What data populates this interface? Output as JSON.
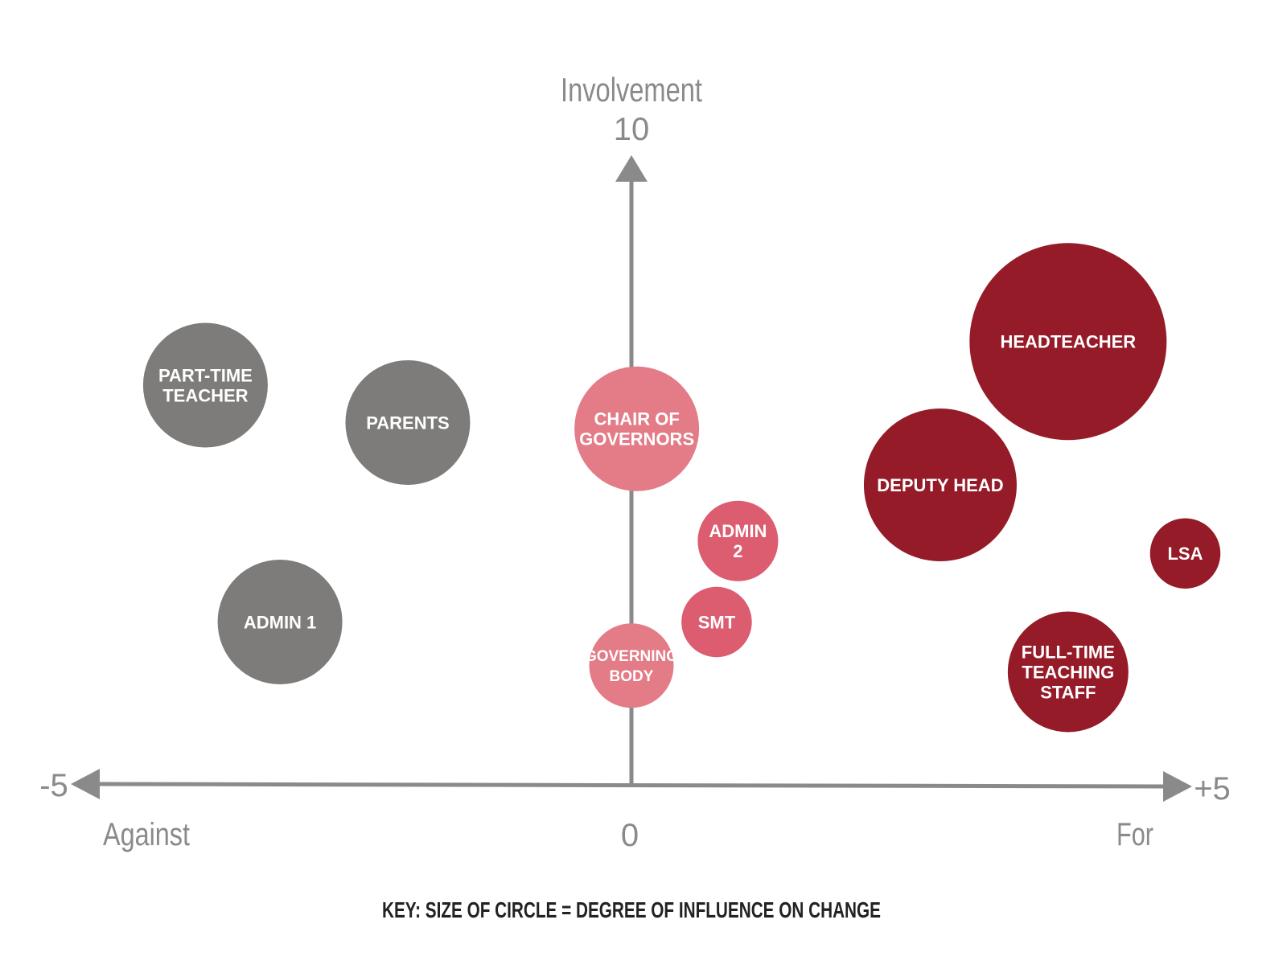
{
  "chart_data": {
    "type": "scatter",
    "y_axis_label": "Involvement",
    "y_axis_max_label": "10",
    "x_axis_min_label": "-5",
    "x_axis_max_label": "+5",
    "x_axis_zero_label": "0",
    "x_axis_left_label": "Against",
    "x_axis_right_label": "For",
    "xlim": [
      -5,
      5
    ],
    "ylim": [
      0,
      10
    ],
    "key": "KEY: SIZE OF CIRCLE = DEGREE OF INFLUENCE ON CHANGE",
    "colors": {
      "against": "#7d7c7a",
      "neutral_light": "#e37c87",
      "neutral": "#dc5c70",
      "for": "#951b28",
      "axis": "#8a8a8a"
    },
    "points": [
      {
        "label": [
          "PART-TIME",
          "TEACHER"
        ],
        "x": -4.0,
        "y": 6.4,
        "influence": 3.1,
        "group": "against"
      },
      {
        "label": [
          "PARENTS"
        ],
        "x": -2.1,
        "y": 5.8,
        "influence": 3.1,
        "group": "against"
      },
      {
        "label": [
          "ADMIN 1"
        ],
        "x": -3.3,
        "y": 2.6,
        "influence": 3.1,
        "group": "against"
      },
      {
        "label": [
          "CHAIR OF",
          "GOVERNORS"
        ],
        "x": 0.05,
        "y": 5.7,
        "influence": 3.1,
        "group": "neutral_light"
      },
      {
        "label": [
          "GOVERNING",
          "BODY"
        ],
        "x": 0.0,
        "y": 1.9,
        "influence": 2.1,
        "group": "neutral_light"
      },
      {
        "label": [
          "ADMIN",
          "2"
        ],
        "x": 1.0,
        "y": 3.9,
        "influence": 2.0,
        "group": "neutral"
      },
      {
        "label": [
          "SMT"
        ],
        "x": 0.8,
        "y": 2.6,
        "influence": 1.75,
        "group": "neutral"
      },
      {
        "label": [
          "HEADTEACHER"
        ],
        "x": 4.1,
        "y": 7.1,
        "influence": 4.9,
        "group": "for"
      },
      {
        "label": [
          "DEPUTY HEAD"
        ],
        "x": 2.9,
        "y": 4.8,
        "influence": 3.8,
        "group": "for"
      },
      {
        "label": [
          "LSA"
        ],
        "x": 5.2,
        "y": 3.7,
        "influence": 1.75,
        "group": "for"
      },
      {
        "label": [
          "FULL-TIME",
          "TEACHING",
          "STAFF"
        ],
        "x": 4.1,
        "y": 1.8,
        "influence": 3.0,
        "group": "for"
      }
    ]
  }
}
